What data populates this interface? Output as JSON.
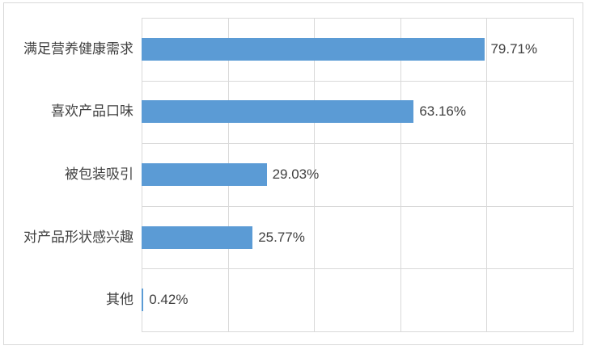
{
  "chart_data": {
    "type": "bar",
    "orientation": "horizontal",
    "title": "",
    "categories": [
      "满足营养健康需求",
      "喜欢产品口味",
      "被包装吸引",
      "对产品形状感兴趣",
      "其他"
    ],
    "values": [
      79.71,
      63.16,
      29.03,
      25.77,
      0.42
    ],
    "data_labels": [
      "79.71%",
      "63.16%",
      "29.03%",
      "25.77%",
      "0.42%"
    ],
    "xlabel": "",
    "ylabel": "",
    "xlim": [
      0,
      100
    ],
    "x_tick_step": 20,
    "x_tick_labels_visible": false,
    "grid": "both",
    "legend": "none",
    "colors": {
      "bar": "#5B9BD5",
      "gridline": "#D9D9D9",
      "frame_border": "#D9D9D9",
      "label_text": "#404040",
      "background": "#FFFFFF"
    }
  }
}
